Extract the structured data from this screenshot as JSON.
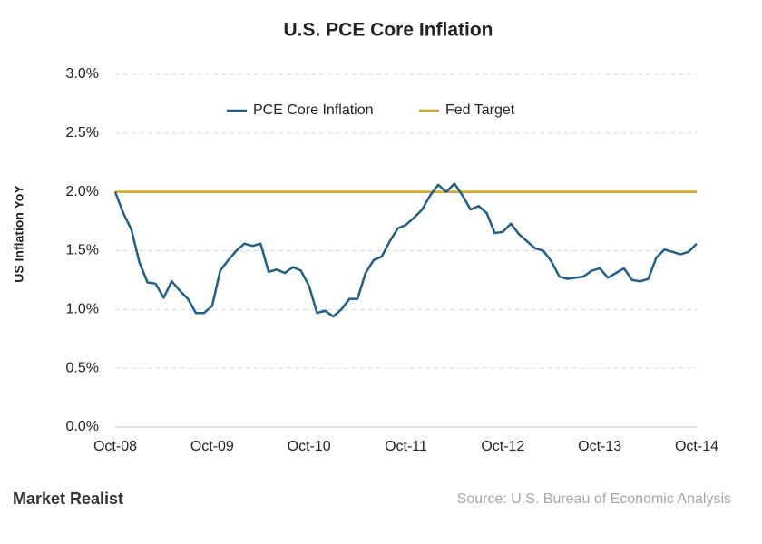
{
  "chart_data": {
    "type": "line",
    "title": "U.S. PCE Core Inflation",
    "ylabel": "US Inflation YoY",
    "categories": [
      "Oct-08",
      null,
      null,
      null,
      null,
      null,
      null,
      null,
      null,
      null,
      null,
      null,
      "Oct-09",
      null,
      null,
      null,
      null,
      null,
      null,
      null,
      null,
      null,
      null,
      null,
      "Oct-10",
      null,
      null,
      null,
      null,
      null,
      null,
      null,
      null,
      null,
      null,
      null,
      "Oct-11",
      null,
      null,
      null,
      null,
      null,
      null,
      null,
      null,
      null,
      null,
      null,
      "Oct-12",
      null,
      null,
      null,
      null,
      null,
      null,
      null,
      null,
      null,
      null,
      null,
      "Oct-13",
      null,
      null,
      null,
      null,
      null,
      null,
      null,
      null,
      null,
      null,
      null,
      "Oct-14"
    ],
    "series": [
      {
        "name": "PCE Core Inflation",
        "color": "#1f5f8b",
        "values": [
          2.0,
          1.82,
          1.68,
          1.4,
          1.23,
          1.22,
          1.1,
          1.24,
          1.16,
          1.09,
          0.97,
          0.97,
          1.03,
          1.33,
          1.42,
          1.5,
          1.56,
          1.54,
          1.56,
          1.32,
          1.34,
          1.31,
          1.36,
          1.33,
          1.2,
          0.97,
          0.99,
          0.94,
          1.0,
          1.09,
          1.09,
          1.31,
          1.42,
          1.45,
          1.58,
          1.69,
          1.72,
          1.78,
          1.85,
          1.97,
          2.06,
          2.0,
          2.07,
          1.97,
          1.85,
          1.88,
          1.82,
          1.65,
          1.66,
          1.73,
          1.64,
          1.58,
          1.52,
          1.5,
          1.41,
          1.28,
          1.26,
          1.27,
          1.28,
          1.33,
          1.35,
          1.27,
          1.31,
          1.35,
          1.25,
          1.24,
          1.26,
          1.44,
          1.51,
          1.49,
          1.47,
          1.49,
          1.56
        ]
      },
      {
        "name": "Fed Target",
        "color": "#d4a520",
        "values": [
          2.0,
          2.0,
          2.0,
          2.0,
          2.0,
          2.0,
          2.0,
          2.0,
          2.0,
          2.0,
          2.0,
          2.0,
          2.0,
          2.0,
          2.0,
          2.0,
          2.0,
          2.0,
          2.0,
          2.0,
          2.0,
          2.0,
          2.0,
          2.0,
          2.0,
          2.0,
          2.0,
          2.0,
          2.0,
          2.0,
          2.0,
          2.0,
          2.0,
          2.0,
          2.0,
          2.0,
          2.0,
          2.0,
          2.0,
          2.0,
          2.0,
          2.0,
          2.0,
          2.0,
          2.0,
          2.0,
          2.0,
          2.0,
          2.0,
          2.0,
          2.0,
          2.0,
          2.0,
          2.0,
          2.0,
          2.0,
          2.0,
          2.0,
          2.0,
          2.0,
          2.0,
          2.0,
          2.0,
          2.0,
          2.0,
          2.0,
          2.0,
          2.0,
          2.0,
          2.0,
          2.0,
          2.0,
          2.0
        ]
      }
    ],
    "ylim": [
      0,
      3
    ],
    "yticks": [
      {
        "value": 0,
        "label": "0.0%"
      },
      {
        "value": 0.5,
        "label": "0.5%"
      },
      {
        "value": 1,
        "label": "1.0%"
      },
      {
        "value": 1.5,
        "label": "1.5%"
      },
      {
        "value": 2,
        "label": "2.0%"
      },
      {
        "value": 2.5,
        "label": "2.5%"
      },
      {
        "value": 3,
        "label": "3.0%"
      }
    ],
    "grid": true,
    "legend": "top"
  },
  "footer": {
    "brand": "Market Realist",
    "source": "Source: U.S. Bureau of Economic Analysis"
  }
}
